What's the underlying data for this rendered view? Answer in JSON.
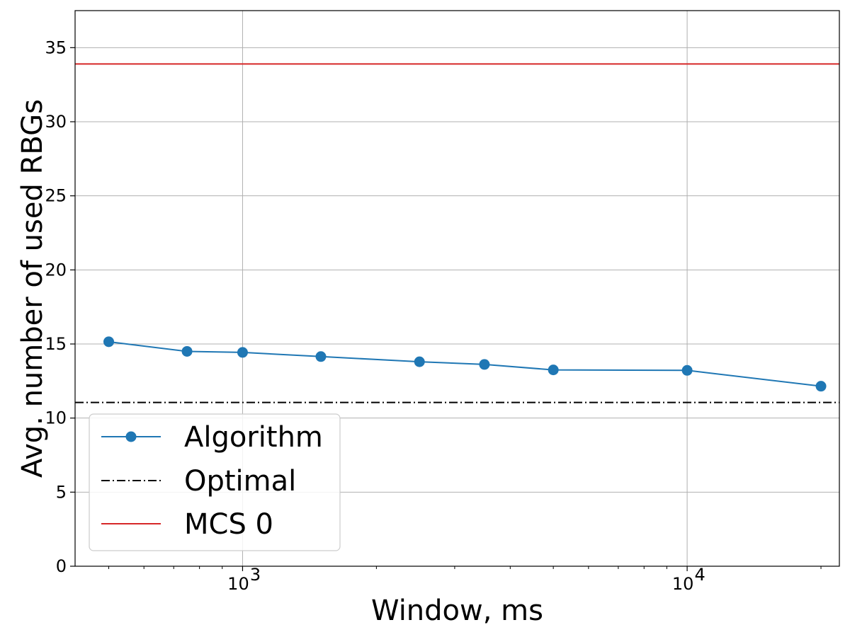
{
  "chart_data": {
    "type": "line",
    "xlabel": "Window, ms",
    "ylabel": "Avg. number of used RBGs",
    "xscale": "log",
    "xlim": [
      420,
      22000
    ],
    "ylim": [
      0,
      37.5
    ],
    "yticks": [
      0,
      5,
      10,
      15,
      20,
      25,
      30,
      35
    ],
    "xticks_major": [
      {
        "value": 1000,
        "base": "10",
        "exp": "3"
      },
      {
        "value": 10000,
        "base": "10",
        "exp": "4"
      }
    ],
    "grid": true,
    "legend_position": "lower-left",
    "series": [
      {
        "name": "Algorithm",
        "style": "solid-marker",
        "color": "#1f77b4",
        "x": [
          500,
          750,
          1000,
          1500,
          2500,
          3500,
          5000,
          10000,
          20000
        ],
        "y": [
          15.15,
          14.5,
          14.43,
          14.15,
          13.8,
          13.62,
          13.25,
          13.22,
          12.15
        ]
      },
      {
        "name": "Optimal",
        "style": "dashdot-hline",
        "color": "#000000",
        "y": 11.05
      },
      {
        "name": "MCS 0",
        "style": "solid-hline",
        "color": "#d62728",
        "y": 33.9
      }
    ]
  }
}
